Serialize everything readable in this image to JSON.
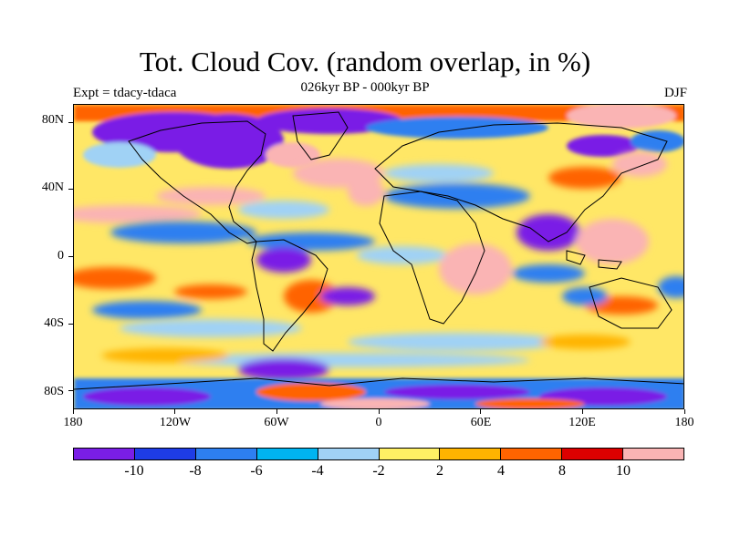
{
  "title": "Tot. Cloud Cov. (random overlap, in %)",
  "subtitle": "026kyr BP - 000kyr BP",
  "left_label": "Expt = tdacy-tdaca",
  "right_label": "DJF",
  "y_axis": {
    "labels": [
      "80N",
      "40N",
      "0",
      "40S",
      "80S"
    ]
  },
  "x_axis": {
    "labels": [
      "180",
      "120W",
      "60W",
      "0",
      "60E",
      "120E",
      "180"
    ]
  },
  "colorbar": {
    "colors": [
      "#7a1ee6",
      "#1e3ce6",
      "#2d7ff0",
      "#00b4f0",
      "#a0d2f5",
      "#fff064",
      "#ffb400",
      "#ff6400",
      "#dc0000",
      "#fab4b4"
    ],
    "labels": [
      "-10",
      "-8",
      "-6",
      "-4",
      "-2",
      "2",
      "4",
      "8",
      "10"
    ]
  },
  "palette": {
    "land_outline": "#000000",
    "background_field": "#ffe766"
  }
}
